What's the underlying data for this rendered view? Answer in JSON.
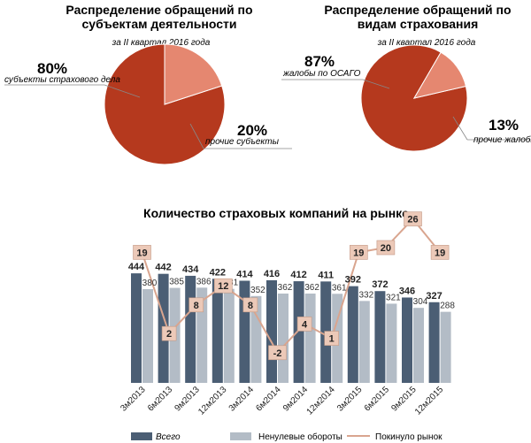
{
  "colors": {
    "pie_main": "#b5391e",
    "pie_secondary": "#e58770",
    "bar_total": "#4b5e74",
    "bar_nonzero": "#b3bcc6",
    "line_left": "#d9a58f",
    "label_box": "#ecc9b8",
    "label_box_stroke": "#c49a86"
  },
  "chart_data": [
    {
      "type": "pie",
      "title": "Распределение обращений по субъектам деятельности",
      "title_line1": "Распределение обращений по",
      "title_line2": "субъектам деятельности",
      "subtitle": "за II квартал 2016 года",
      "slices": [
        {
          "label": "субъекты страхового дела",
          "value": 80,
          "pct_text": "80%"
        },
        {
          "label": "прочие субъекты",
          "value": 20,
          "pct_text": "20%"
        }
      ]
    },
    {
      "type": "pie",
      "title": "Распределение обращений по видам страхования",
      "title_line1": "Распределение обращений по",
      "title_line2": "видам страхования",
      "subtitle": "за II квартал 2016 года",
      "slices": [
        {
          "label": "жалобы по ОСАГО",
          "value": 87,
          "pct_text": "87%"
        },
        {
          "label": "прочие жалобы",
          "value": 13,
          "pct_text": "13%"
        }
      ]
    },
    {
      "type": "bar",
      "title": "Количество страховых компаний на рынке",
      "categories": [
        "3м2013",
        "6м2013",
        "9м2013",
        "12м2013",
        "3м2014",
        "6м2014",
        "9м2014",
        "12м2014",
        "3м2015",
        "6м2015",
        "9м2015",
        "12м2015"
      ],
      "series": [
        {
          "name": "Всего",
          "values": [
            444,
            442,
            434,
            422,
            414,
            416,
            412,
            411,
            392,
            372,
            346,
            327
          ]
        },
        {
          "name": "Ненулевые обороты",
          "values": [
            380,
            385,
            386,
            381,
            352,
            362,
            362,
            361,
            332,
            321,
            304,
            288
          ]
        }
      ],
      "line_series": {
        "name": "Покинуло рынок",
        "values": [
          19,
          2,
          8,
          12,
          8,
          -2,
          4,
          1,
          19,
          20,
          26,
          19
        ]
      },
      "ylim_bars": [
        0,
        480
      ],
      "ylim_line": [
        -6,
        30
      ],
      "legend_position": "bottom"
    }
  ]
}
